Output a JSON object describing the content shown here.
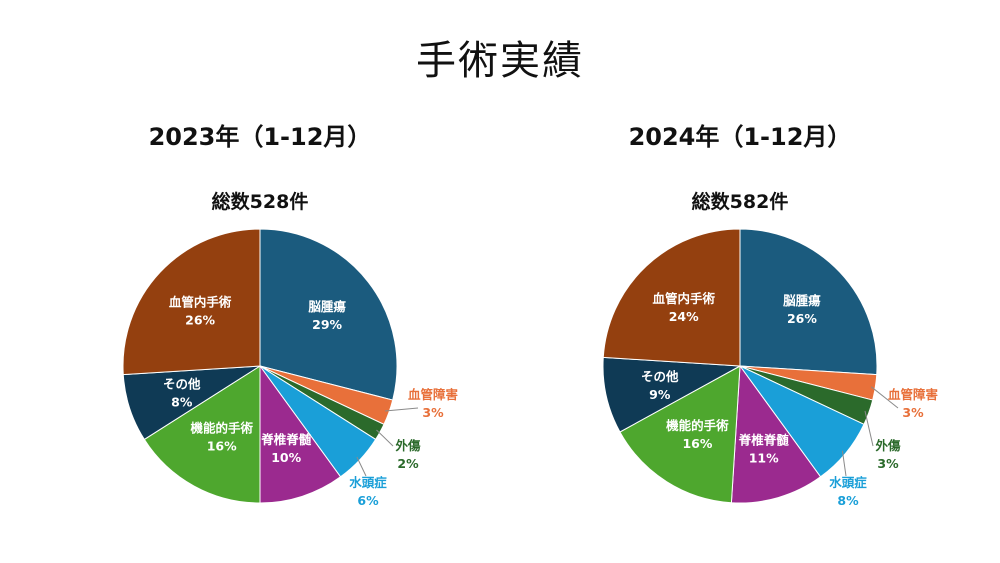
{
  "title": "手術実績",
  "chart_data": [
    {
      "type": "pie",
      "title": "2023年（1-12月）",
      "subtitle": "総数528件",
      "slices": [
        {
          "label": "脳腫瘍",
          "pct_label": "29%",
          "value": 29,
          "color": "#1b5b7e"
        },
        {
          "label": "血管障害",
          "pct_label": "3%",
          "value": 3,
          "color": "#e8703a"
        },
        {
          "label": "外傷",
          "pct_label": "2%",
          "value": 2,
          "color": "#2b6a2b"
        },
        {
          "label": "水頭症",
          "pct_label": "6%",
          "value": 6,
          "color": "#1a9fd8"
        },
        {
          "label": "脊椎脊髄",
          "pct_label": "10%",
          "value": 10,
          "color": "#9b2a8f"
        },
        {
          "label": "機能的手術",
          "pct_label": "16%",
          "value": 16,
          "color": "#4ea72e"
        },
        {
          "label": "その他",
          "pct_label": "8%",
          "value": 8,
          "color": "#0f3a55"
        },
        {
          "label": "血管内手術",
          "pct_label": "26%",
          "value": 26,
          "color": "#94400f"
        }
      ]
    },
    {
      "type": "pie",
      "title": "2024年（1-12月）",
      "subtitle": "総数582件",
      "slices": [
        {
          "label": "脳腫瘍",
          "pct_label": "26%",
          "value": 26,
          "color": "#1b5b7e"
        },
        {
          "label": "血管障害",
          "pct_label": "3%",
          "value": 3,
          "color": "#e8703a"
        },
        {
          "label": "外傷",
          "pct_label": "3%",
          "value": 3,
          "color": "#2b6a2b"
        },
        {
          "label": "水頭症",
          "pct_label": "8%",
          "value": 8,
          "color": "#1a9fd8"
        },
        {
          "label": "脊椎脊髄",
          "pct_label": "11%",
          "value": 11,
          "color": "#9b2a8f"
        },
        {
          "label": "機能的手術",
          "pct_label": "16%",
          "value": 16,
          "color": "#4ea72e"
        },
        {
          "label": "その他",
          "pct_label": "9%",
          "value": 9,
          "color": "#0f3a55"
        },
        {
          "label": "血管内手術",
          "pct_label": "24%",
          "value": 24,
          "color": "#94400f"
        }
      ]
    }
  ]
}
